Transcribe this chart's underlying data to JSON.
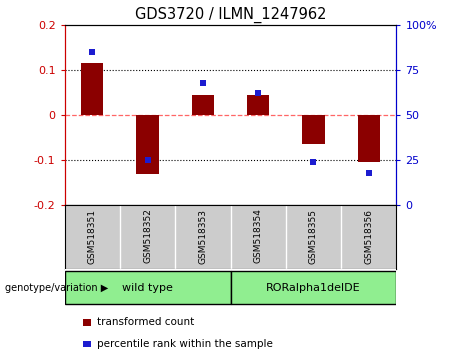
{
  "title": "GDS3720 / ILMN_1247962",
  "samples": [
    "GSM518351",
    "GSM518352",
    "GSM518353",
    "GSM518354",
    "GSM518355",
    "GSM518356"
  ],
  "bar_values": [
    0.115,
    -0.13,
    0.045,
    0.045,
    -0.065,
    -0.105
  ],
  "dot_values": [
    85,
    25,
    68,
    62,
    24,
    18
  ],
  "ylim_left": [
    -0.2,
    0.2
  ],
  "ylim_right": [
    0,
    100
  ],
  "yticks_left": [
    -0.2,
    -0.1,
    0,
    0.1,
    0.2
  ],
  "yticks_right": [
    0,
    25,
    50,
    75,
    100
  ],
  "groups": [
    {
      "label": "wild type",
      "span": [
        0,
        3
      ],
      "color": "#90EE90"
    },
    {
      "label": "RORalpha1delDE",
      "span": [
        3,
        6
      ],
      "color": "#90EE90"
    }
  ],
  "group_label_prefix": "genotype/variation",
  "bar_color": "#8B0000",
  "dot_color": "#1C1CD0",
  "legend_bar_label": "transformed count",
  "legend_dot_label": "percentile rank within the sample",
  "background_color": "#ffffff",
  "plot_bg_color": "#ffffff",
  "zero_line_color": "#ff6666",
  "dotted_line_color": "#000000",
  "sample_box_color": "#cccccc",
  "left_tick_color": "#cc0000",
  "right_tick_color": "#0000cc"
}
